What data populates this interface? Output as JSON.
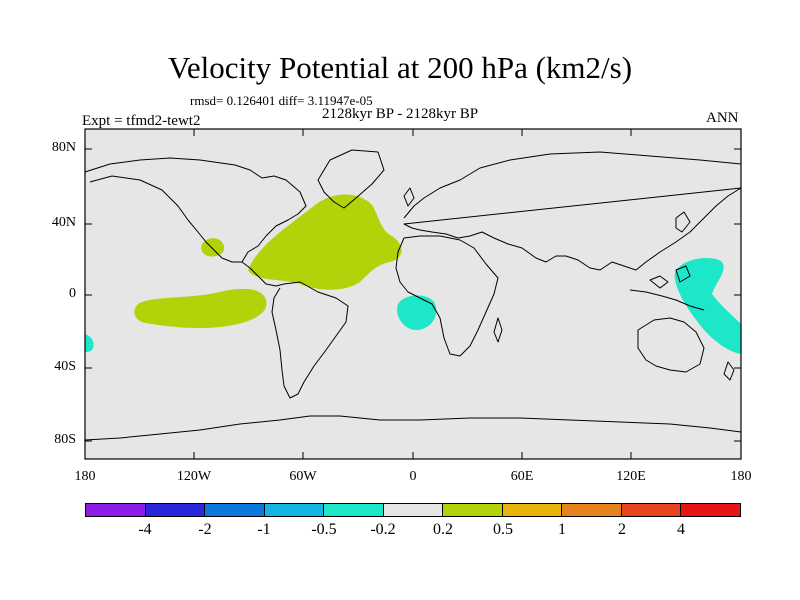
{
  "title": "Velocity Potential at 200 hPa (km2/s)",
  "stats": "rmsd= 0.126401  diff= 3.11947e-05",
  "period": "2128kyr BP - 2128kyr BP",
  "experiment": "Expt = tfmd2-tewt2",
  "season": "ANN",
  "lat_ticks": [
    "80N",
    "40N",
    "0",
    "40S",
    "80S"
  ],
  "lon_ticks": [
    "180",
    "120W",
    "60W",
    "0",
    "60E",
    "120E",
    "180"
  ],
  "colorbar": {
    "colors": [
      "#8c1ce6",
      "#2828d8",
      "#0a78dc",
      "#14b4e6",
      "#1ee6c8",
      "#e6e6e6",
      "#b4d20a",
      "#e6b40a",
      "#e6821e",
      "#e6461e",
      "#e61414"
    ],
    "labels": [
      "-4",
      "-2",
      "-1",
      "-0.5",
      "-0.2",
      "0.2",
      "0.5",
      "1",
      "2",
      "4"
    ]
  },
  "colors": {
    "land_ocean_background": "#e6e6e6",
    "positive_anomaly": "#b4d20a",
    "negative_anomaly": "#1ee6c8"
  }
}
